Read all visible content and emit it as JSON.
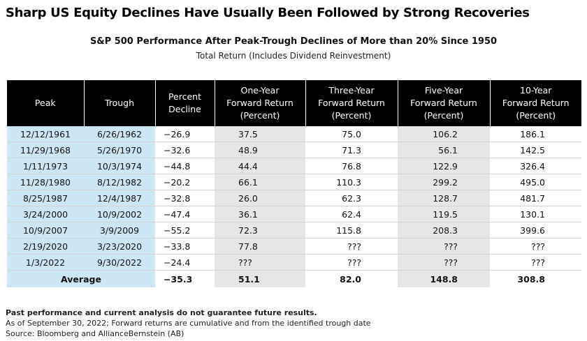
{
  "title": "Sharp US Equity Declines Have Usually Been Followed by Strong Recoveries",
  "subtitle": "S&P 500 Performance After Peak-Trough Declines of More than 20% Since 1950",
  "subtitle2": "Total Return (Includes Dividend Reinvestment)",
  "headers": {
    "peak": "Peak",
    "trough": "Trough",
    "pct": "Percent\nDecline",
    "one": "One-Year\nForward Return\n(Percent)",
    "three": "Three-Year\nForward Return\n(Percent)",
    "five": "Five-Year\nForward Return\n(Percent)",
    "ten": "10-Year\nForward Return\n(Percent)"
  },
  "rows": [
    {
      "peak": "12/12/1961",
      "trough": "6/26/1962",
      "pct": "−26.9",
      "one": "37.5",
      "three": "75.0",
      "five": "106.2",
      "ten": "186.1"
    },
    {
      "peak": "11/29/1968",
      "trough": "5/26/1970",
      "pct": "−32.6",
      "one": "48.9",
      "three": "71.3",
      "five": "56.1",
      "ten": "142.5"
    },
    {
      "peak": "1/11/1973",
      "trough": "10/3/1974",
      "pct": "−44.8",
      "one": "44.4",
      "three": "76.8",
      "five": "122.9",
      "ten": "326.4"
    },
    {
      "peak": "11/28/1980",
      "trough": "8/12/1982",
      "pct": "−20.2",
      "one": "66.1",
      "three": "110.3",
      "five": "299.2",
      "ten": "495.0"
    },
    {
      "peak": "8/25/1987",
      "trough": "12/4/1987",
      "pct": "−32.8",
      "one": "26.0",
      "three": "62.3",
      "five": "128.7",
      "ten": "481.7"
    },
    {
      "peak": "3/24/2000",
      "trough": "10/9/2002",
      "pct": "−47.4",
      "one": "36.1",
      "three": "62.4",
      "five": "119.5",
      "ten": "130.1"
    },
    {
      "peak": "10/9/2007",
      "trough": "3/9/2009",
      "pct": "−55.2",
      "one": "72.3",
      "three": "115.8",
      "five": "208.3",
      "ten": "399.6"
    },
    {
      "peak": "2/19/2020",
      "trough": "3/23/2020",
      "pct": "−33.8",
      "one": "77.8",
      "three": "???",
      "five": "???",
      "ten": "???"
    },
    {
      "peak": "1/3/2022",
      "trough": "9/30/2022",
      "pct": "−24.4",
      "one": "???",
      "three": "???",
      "five": "???",
      "ten": "???"
    }
  ],
  "average": {
    "label": "Average",
    "pct": "−35.3",
    "one": "51.1",
    "three": "82.0",
    "five": "148.8",
    "ten": "308.8"
  },
  "notes": {
    "disclaimer": "Past performance and current analysis do not guarantee future results.",
    "asof": "As of September 30, 2022; Forward returns are cumulative and from the identified trough date",
    "source": "Source: Bloomberg and AllianceBernstein (AB)"
  },
  "colors": {
    "header_bg": "#000000",
    "date_col_bg": "#cde6f4",
    "shaded_col_bg": "#e6e6e6"
  }
}
